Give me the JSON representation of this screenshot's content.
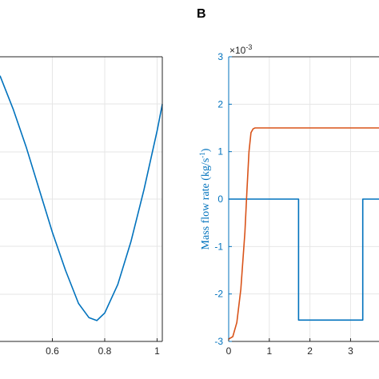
{
  "chart_data": [
    {
      "panel": "A",
      "type": "line",
      "title": "",
      "xlabel": "",
      "ylabel": "",
      "xlim": [
        0.4,
        1.02
      ],
      "x_ticks": [
        0.6,
        0.8,
        1
      ],
      "x_tick_labels": [
        "0.6",
        "0.8",
        "1"
      ],
      "grid": true,
      "series": [
        {
          "color": "#0072BD",
          "x": [
            0.4,
            0.45,
            0.5,
            0.55,
            0.6,
            0.65,
            0.7,
            0.74,
            0.77,
            0.8,
            0.85,
            0.9,
            0.95,
            1.0,
            1.02
          ],
          "y": [
            1.3,
            0.95,
            0.55,
            0.1,
            -0.35,
            -0.75,
            -1.1,
            -1.25,
            -1.28,
            -1.2,
            -0.9,
            -0.45,
            0.1,
            0.72,
            1.0
          ]
        }
      ]
    },
    {
      "panel": "B",
      "panel_label": "B",
      "type": "line",
      "title": "",
      "xlabel": "",
      "ylabel": "Mass flow rate (kg/s-1)",
      "ylabel_parts": {
        "main": "Mass flow rate (kg/s",
        "sup": "-1",
        "close": ")"
      },
      "y_exponent": {
        "base": "×10",
        "power": "-3"
      },
      "xlim": [
        0,
        3.7
      ],
      "ylim": [
        -3,
        3
      ],
      "x_ticks": [
        0,
        1,
        2,
        3
      ],
      "x_tick_labels": [
        "0",
        "1",
        "2",
        "3"
      ],
      "y_ticks": [
        -3,
        -2,
        -1,
        0,
        1,
        2,
        3
      ],
      "y_tick_labels": [
        "-3",
        "-2",
        "-1",
        "0",
        "1",
        "2",
        "3"
      ],
      "grid": true,
      "ylabel_color": "#0072BD",
      "series": [
        {
          "color": "#0072BD",
          "x": [
            0,
            1.72,
            1.72,
            3.3,
            3.3,
            3.7
          ],
          "y": [
            0,
            0,
            -2.55,
            -2.55,
            0,
            0
          ]
        },
        {
          "color": "#D95319",
          "x": [
            0,
            0.1,
            0.2,
            0.3,
            0.4,
            0.45,
            0.5,
            0.55,
            0.6,
            0.65,
            0.7,
            3.7
          ],
          "y": [
            -2.95,
            -2.9,
            -2.6,
            -1.9,
            -0.7,
            0.2,
            1.0,
            1.4,
            1.48,
            1.5,
            1.5,
            1.5
          ]
        }
      ]
    }
  ]
}
